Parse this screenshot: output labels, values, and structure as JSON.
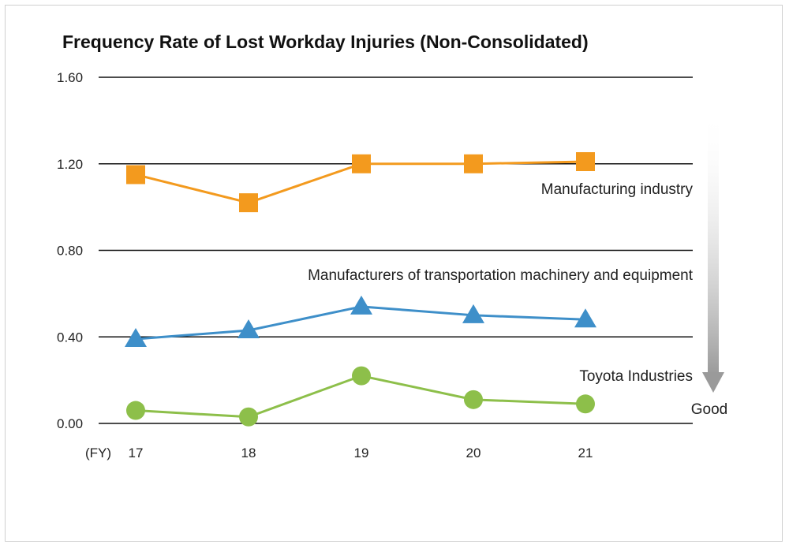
{
  "chart_data": {
    "type": "line",
    "title": "Frequency Rate of Lost Workday Injuries (Non-Consolidated)",
    "x_prefix": "(FY)",
    "categories": [
      "17",
      "18",
      "19",
      "20",
      "21"
    ],
    "y_ticks": [
      "1.60",
      "1.20",
      "0.80",
      "0.40",
      "0.00"
    ],
    "ylim": [
      0,
      1.6
    ],
    "grid": true,
    "series": [
      {
        "name": "Manufacturing industry",
        "values": [
          1.15,
          1.02,
          1.2,
          1.2,
          1.21
        ],
        "color": "#f39a1e",
        "marker": "square"
      },
      {
        "name": "Manufacturers of transportation machinery and equipment",
        "values": [
          0.39,
          0.43,
          0.54,
          0.5,
          0.48
        ],
        "color": "#3e8fc9",
        "marker": "triangle"
      },
      {
        "name": "Toyota Industries",
        "values": [
          0.06,
          0.03,
          0.22,
          0.11,
          0.09
        ],
        "color": "#8dbf4a",
        "marker": "circle"
      }
    ],
    "annotation": "Good"
  }
}
